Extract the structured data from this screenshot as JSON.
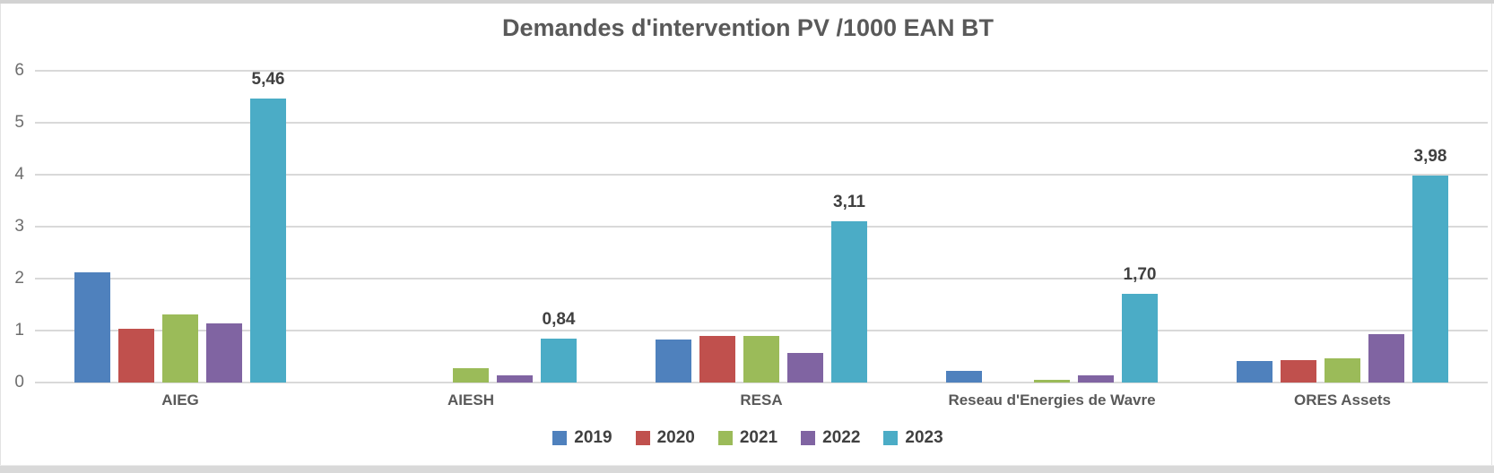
{
  "title": "Demandes d'intervention PV /1000 EAN BT",
  "colors": {
    "grid": "#d9d9d9",
    "title_text": "#595959",
    "axis_text": "#6e6e6e",
    "category_text": "#595959",
    "data_label_text": "#404040"
  },
  "chart_data": {
    "type": "bar",
    "title": "Demandes d'intervention PV /1000 EAN BT",
    "categories": [
      "AIEG",
      "AIESH",
      "RESA",
      "Reseau d'Energies de Wavre",
      "ORES Assets"
    ],
    "series": [
      {
        "name": "2019",
        "color": "#4F81BD",
        "values": [
          2.12,
          0,
          0.82,
          0.22,
          0.42
        ]
      },
      {
        "name": "2020",
        "color": "#C0504D",
        "values": [
          1.04,
          0,
          0.9,
          0,
          0.43
        ]
      },
      {
        "name": "2021",
        "color": "#9BBB59",
        "values": [
          1.31,
          0.28,
          0.9,
          0.05,
          0.47
        ]
      },
      {
        "name": "2022",
        "color": "#8064A2",
        "values": [
          1.14,
          0.13,
          0.57,
          0.14,
          0.93
        ]
      },
      {
        "name": "2023",
        "color": "#4BACC6",
        "values": [
          5.46,
          0.84,
          3.11,
          1.7,
          3.98
        ],
        "data_labels": [
          "5,46",
          "0,84",
          "3,11",
          "1,70",
          "3,98"
        ]
      }
    ],
    "xlabel": "",
    "ylabel": "",
    "ylim": [
      0,
      6
    ],
    "yticks": [
      0,
      1,
      2,
      3,
      4,
      5,
      6
    ],
    "grid": true,
    "legend_position": "bottom"
  }
}
